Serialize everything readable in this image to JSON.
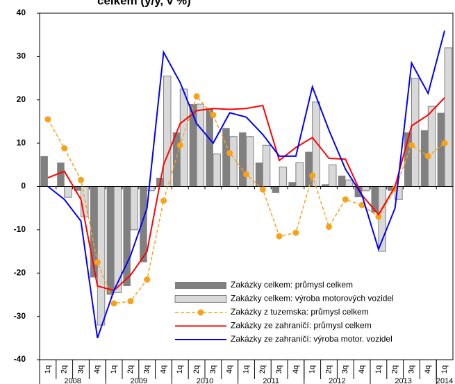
{
  "chart_data": {
    "type": "bar",
    "title": "celkem (y/y, v %)",
    "categories": [
      "1q",
      "2q",
      "3q",
      "4q",
      "1q",
      "2q",
      "3q",
      "4q",
      "1q",
      "2q",
      "3q",
      "4q",
      "1q",
      "2q",
      "3q",
      "4q",
      "1q",
      "2q",
      "3q",
      "4q",
      "1q",
      "2q",
      "3q",
      "4q",
      "1q"
    ],
    "years": [
      "2008",
      "2009",
      "2010",
      "2011",
      "2012",
      "2013",
      "2014"
    ],
    "ylim": [
      -40,
      40
    ],
    "yticks": [
      -40,
      -30,
      -20,
      -10,
      0,
      10,
      20,
      30,
      40
    ],
    "legend": "bottom",
    "series": [
      {
        "name": "Zakázky celkem: průmysl celkem",
        "type": "bar",
        "color": "#808080",
        "values": [
          7,
          5.5,
          -1,
          -21,
          -25,
          -23,
          -17.5,
          2,
          12.5,
          19,
          18,
          13.5,
          12.5,
          5.5,
          -1.5,
          1,
          8,
          0.5,
          2.5,
          -2.5,
          -6,
          -1,
          12.5,
          13,
          17
        ]
      },
      {
        "name": "Zakázky celkem: výroba motorových vozidel",
        "type": "bar",
        "color": "#d9d9d9",
        "values": [
          0,
          -2.5,
          -7,
          -32,
          -24.5,
          -10,
          -1,
          25.5,
          22.5,
          19,
          7.5,
          11.5,
          11.5,
          9.5,
          4.5,
          5.5,
          19.5,
          5,
          1.5,
          -1,
          -15,
          -3,
          25,
          18.5,
          32
        ]
      },
      {
        "name": "Zakázky z tuzemska: průmysl celkem",
        "type": "line",
        "color": "#f7a21b",
        "dashed": true,
        "marker": "circle",
        "values": [
          15.5,
          8.8,
          1.5,
          -17.5,
          -27,
          -26.5,
          -21.5,
          -3.3,
          9.5,
          20.8,
          16.5,
          7.7,
          2.8,
          -0.7,
          -11.5,
          -10.7,
          2.5,
          -9.3,
          -3,
          -4.3,
          -7,
          -0.5,
          9.5,
          7,
          10
        ]
      },
      {
        "name": "Zakázky ze zahraničí: průmysl celkem",
        "type": "line",
        "color": "#ff0000",
        "values": [
          2,
          3.5,
          -3,
          -23,
          -24,
          -20.5,
          -15,
          5,
          14.5,
          17.5,
          18,
          17.8,
          18,
          18.7,
          6,
          9,
          11.3,
          6.5,
          6.3,
          -2,
          -6.5,
          0,
          14,
          16.5,
          20.5
        ]
      },
      {
        "name": "Zakázky ze zahraničí: výroba motor. vozidel",
        "type": "line",
        "color": "#0000ff",
        "values": [
          0,
          -3,
          -8,
          -35,
          -24,
          -16,
          -5,
          31,
          24,
          14.5,
          10,
          17,
          16,
          12,
          7,
          7,
          23,
          13,
          4,
          -2,
          -14.5,
          -5,
          28.5,
          21.5,
          36
        ]
      }
    ]
  }
}
